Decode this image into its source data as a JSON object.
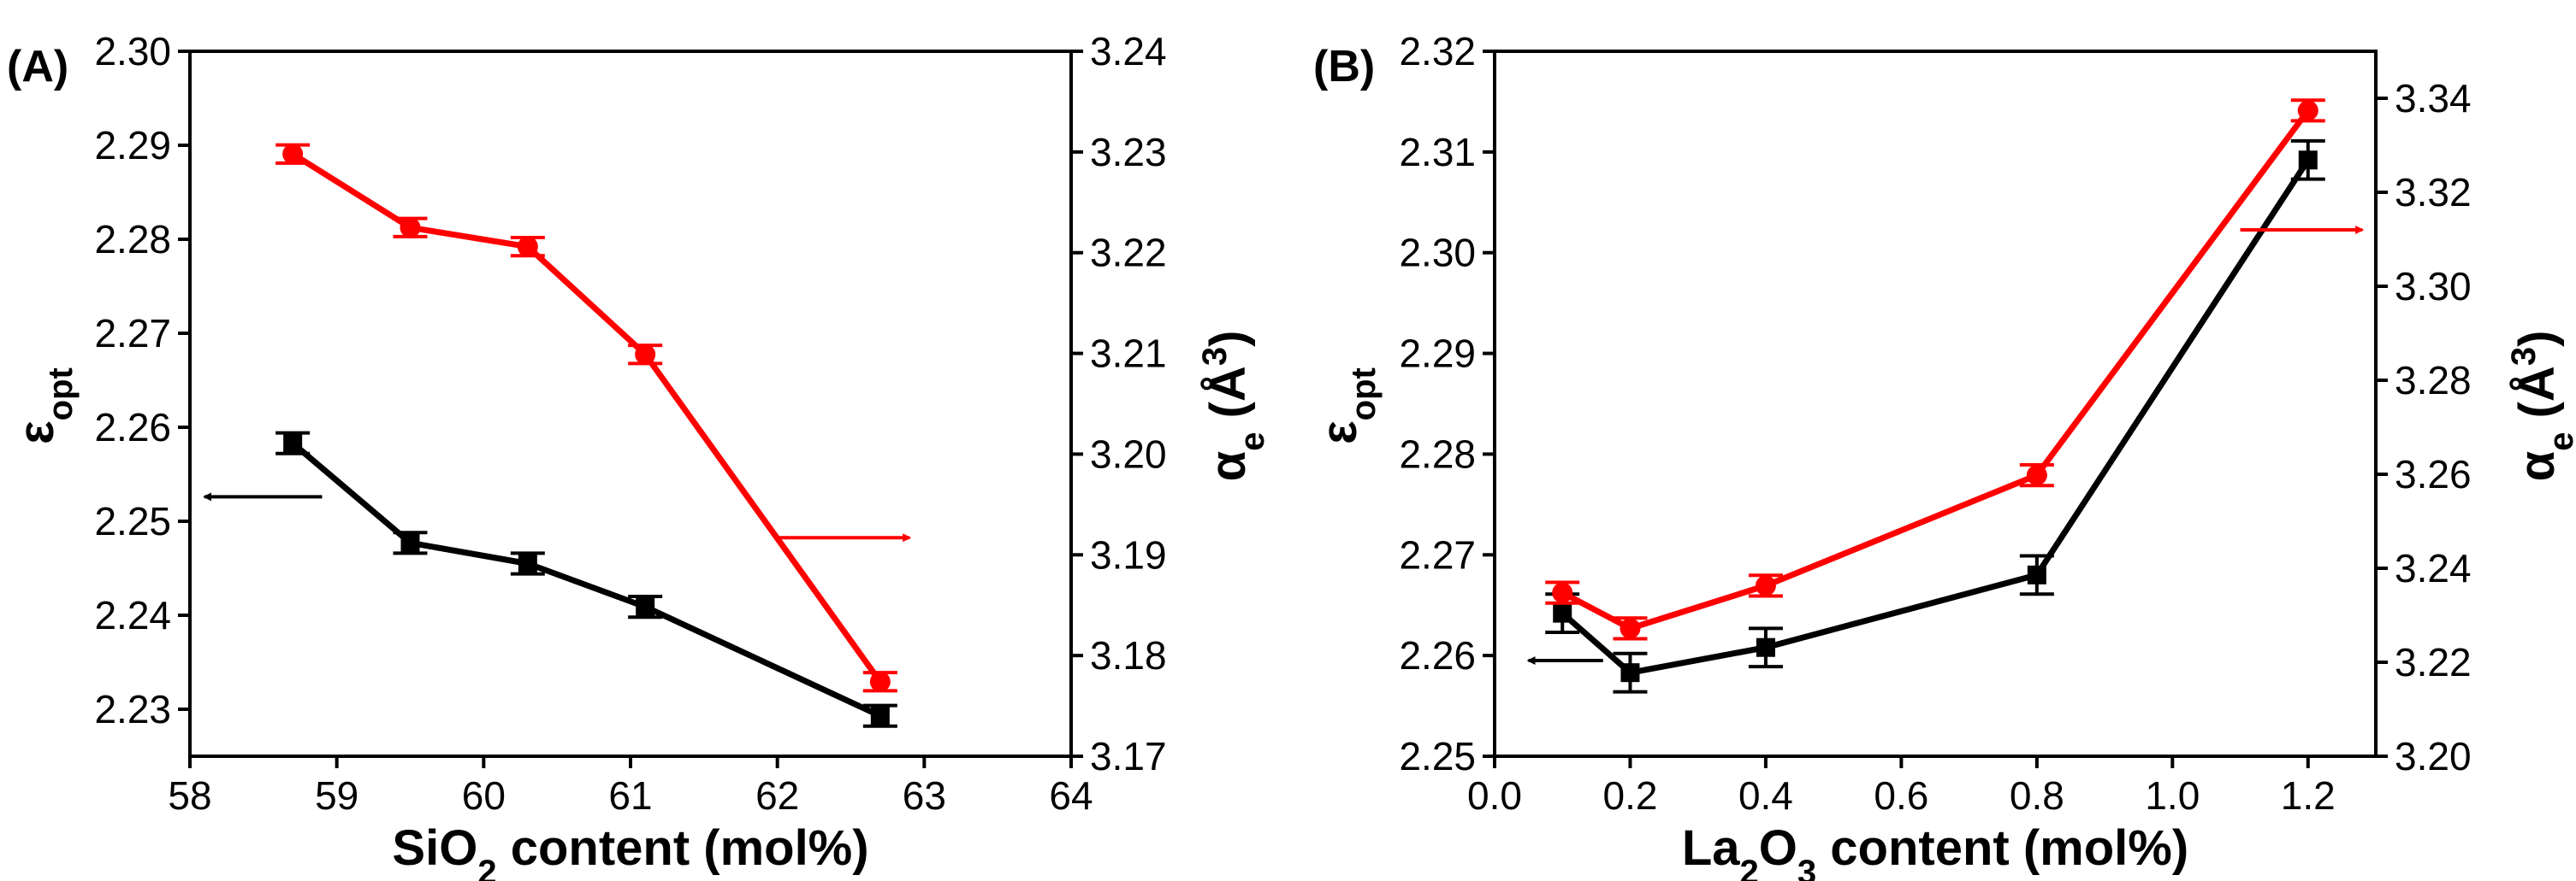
{
  "figure": {
    "colors": {
      "left_series": "#000000",
      "right_series": "#ff0000",
      "axis": "#000000"
    }
  },
  "chart_data": [
    {
      "type": "line",
      "panel_label": "(A)",
      "title": "",
      "xlabel": {
        "main": "SiO",
        "sub": "2",
        "rest": " content (mol%)"
      },
      "ylabel_left": {
        "main": "ε",
        "sub": "opt"
      },
      "ylabel_right": {
        "main": "α",
        "sub": "e",
        "rest": " (Å",
        "sup": "3",
        "close": ")"
      },
      "xlim": [
        58,
        64
      ],
      "ylim_left": [
        2.225,
        2.3
      ],
      "ylim_right": [
        3.17,
        3.24
      ],
      "x_ticks": [
        58,
        59,
        60,
        61,
        62,
        63,
        64
      ],
      "x_tick_labels": [
        "58",
        "59",
        "60",
        "61",
        "62",
        "63",
        "64"
      ],
      "y_left_ticks": [
        2.23,
        2.24,
        2.25,
        2.26,
        2.27,
        2.28,
        2.29,
        2.3
      ],
      "y_left_tick_labels": [
        "2.23",
        "2.24",
        "2.25",
        "2.26",
        "2.27",
        "2.28",
        "2.29",
        "2.30"
      ],
      "y_right_ticks": [
        3.17,
        3.18,
        3.19,
        3.2,
        3.21,
        3.22,
        3.23,
        3.24
      ],
      "y_right_tick_labels": [
        "3.17",
        "3.18",
        "3.19",
        "3.20",
        "3.21",
        "3.22",
        "3.23",
        "3.24"
      ],
      "series": [
        {
          "name": "ε_opt",
          "axis": "left",
          "color": "#000000",
          "marker": "square",
          "x": [
            58.7,
            59.5,
            60.3,
            61.1,
            62.7
          ],
          "values": [
            2.2583,
            2.2477,
            2.2455,
            2.2409,
            2.2293
          ],
          "errors": [
            0.0011,
            0.0011,
            0.0011,
            0.0011,
            0.0011
          ]
        },
        {
          "name": "α_e (Å3)",
          "axis": "right",
          "color": "#ff0000",
          "marker": "circle",
          "x": [
            58.7,
            59.5,
            60.3,
            61.1,
            62.7
          ],
          "values": [
            3.2298,
            3.2225,
            3.2206,
            3.2099,
            3.1774
          ],
          "errors": [
            0.0009,
            0.0009,
            0.0009,
            0.0009,
            0.0009
          ]
        }
      ],
      "arrows": [
        {
          "series": "left",
          "direction": "left",
          "x_from": 58.9,
          "x_to": 58.1,
          "y": 2.2526
        },
        {
          "series": "right",
          "direction": "right",
          "x_from": 62.0,
          "x_to": 62.9,
          "y": 3.1917
        }
      ]
    },
    {
      "type": "line",
      "panel_label": "(B)",
      "title": "",
      "xlabel": {
        "main": "La",
        "sub": "2",
        "rest": "O",
        "sub2": "3",
        "rest2": " content (mol%)"
      },
      "ylabel_left": {
        "main": "ε",
        "sub": "opt"
      },
      "ylabel_right": {
        "main": "α",
        "sub": "e",
        "rest": " (Å",
        "sup": "3",
        "close": ")"
      },
      "xlim": [
        0.0,
        1.3
      ],
      "ylim_left": [
        2.25,
        2.32
      ],
      "ylim_right": [
        3.2,
        3.35
      ],
      "x_ticks": [
        0.0,
        0.2,
        0.4,
        0.6,
        0.8,
        1.0,
        1.2
      ],
      "x_tick_labels": [
        "0.0",
        "0.2",
        "0.4",
        "0.6",
        "0.8",
        "1.0",
        "1.2"
      ],
      "y_left_ticks": [
        2.25,
        2.26,
        2.27,
        2.28,
        2.29,
        2.3,
        2.31,
        2.32
      ],
      "y_left_tick_labels": [
        "2.25",
        "2.26",
        "2.27",
        "2.28",
        "2.29",
        "2.30",
        "2.31",
        "2.32"
      ],
      "y_right_ticks": [
        3.2,
        3.22,
        3.24,
        3.26,
        3.28,
        3.3,
        3.32,
        3.34
      ],
      "y_right_tick_labels": [
        "3.20",
        "3.22",
        "3.24",
        "3.26",
        "3.28",
        "3.30",
        "3.32",
        "3.34"
      ],
      "series": [
        {
          "name": "ε_opt",
          "axis": "left",
          "color": "#000000",
          "marker": "square",
          "x": [
            0.1,
            0.2,
            0.4,
            0.8,
            1.2
          ],
          "values": [
            2.2642,
            2.2583,
            2.2608,
            2.268,
            2.3092
          ],
          "errors": [
            0.0019,
            0.0019,
            0.0019,
            0.0019,
            0.0019
          ]
        },
        {
          "name": "α_e (Å3)",
          "axis": "right",
          "color": "#ff0000",
          "marker": "circle",
          "x": [
            0.1,
            0.2,
            0.4,
            0.8,
            1.2
          ],
          "values": [
            3.2348,
            3.2272,
            3.2363,
            3.2598,
            3.3374
          ],
          "errors": [
            0.0022,
            0.0022,
            0.0022,
            0.0022,
            0.0022
          ]
        }
      ],
      "arrows": [
        {
          "series": "left",
          "direction": "left",
          "x_from": 0.16,
          "x_to": 0.05,
          "y": 2.2595
        },
        {
          "series": "right",
          "direction": "right",
          "x_from": 1.1,
          "x_to": 1.28,
          "y": 3.312
        }
      ]
    }
  ]
}
